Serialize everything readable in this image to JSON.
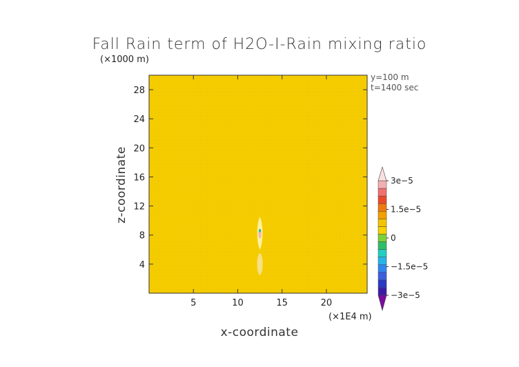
{
  "chart_data": {
    "type": "heatmap",
    "title": "Fall Rain term of H2O-I-Rain mixing ratio",
    "xlabel": "x-coordinate",
    "ylabel": "z-coordinate",
    "x_unit": "(×1E4 m)",
    "y_unit": "(×1000 m)",
    "xlim": [
      0,
      24.6
    ],
    "ylim": [
      0,
      30
    ],
    "x_ticks": [
      5,
      10,
      15,
      20
    ],
    "y_ticks": [
      4,
      8,
      12,
      16,
      20,
      24,
      28
    ],
    "x_tick_labels": [
      "5",
      "10",
      "15",
      "20"
    ],
    "y_tick_labels": [
      "4",
      "8",
      "12",
      "16",
      "20",
      "24",
      "28"
    ],
    "annotations": [
      "y=100 m",
      "t=1400 sec"
    ],
    "field_background_value": 0,
    "feature": {
      "description_value_range": [
        -3e-05,
        3e-05
      ],
      "x_center": 12.5,
      "z_range": [
        2.5,
        10.5
      ],
      "peak_z": 8.6
    },
    "colorbar": {
      "min": -3e-05,
      "max": 3e-05,
      "tick_values": [
        3e-05,
        1.5e-05,
        0,
        -1.5e-05,
        -3e-05
      ],
      "tick_labels": [
        "3e−5",
        "1.5e−5",
        "0",
        "−1.5e−5",
        "−3e−5"
      ],
      "colors": [
        "#7b0d9e",
        "#3a1ea8",
        "#2a38c4",
        "#3b5fe0",
        "#2f86f0",
        "#27b4e8",
        "#20d0c0",
        "#2fbf6a",
        "#7bd13a",
        "#f6d200",
        "#f5c400",
        "#f3a000",
        "#ef7a10",
        "#ea4a2a",
        "#f07070",
        "#f4b0b0",
        "#fbe0e0"
      ],
      "background_color": "#f5cc00"
    }
  }
}
